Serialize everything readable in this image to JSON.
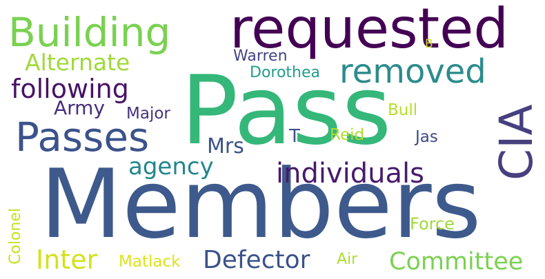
{
  "word_cloud": {
    "words": [
      {
        "text": "Pass",
        "color": "#35b779"
      },
      {
        "text": "Members",
        "color": "#3e5a8c"
      },
      {
        "text": "requested",
        "color": "#440154"
      },
      {
        "text": "Building",
        "color": "#7ad151"
      },
      {
        "text": "Passes",
        "color": "#3b528b"
      },
      {
        "text": "CIA",
        "color": "#46407f"
      },
      {
        "text": "removed",
        "color": "#2c8b8c"
      },
      {
        "text": "following",
        "color": "#471365"
      },
      {
        "text": "Alternate",
        "color": "#a0da39"
      },
      {
        "text": "individuals",
        "color": "#481a6c"
      },
      {
        "text": "agency",
        "color": "#23868d"
      },
      {
        "text": "Defector",
        "color": "#3b528b"
      },
      {
        "text": "Committee",
        "color": "#7ad151"
      },
      {
        "text": "Inter",
        "color": "#d2e21b"
      },
      {
        "text": "Army",
        "color": "#472d7b"
      },
      {
        "text": "Mrs",
        "color": "#3b528b"
      },
      {
        "text": "Warren",
        "color": "#414487"
      },
      {
        "text": "Dorothea",
        "color": "#1f9e89"
      },
      {
        "text": "Major",
        "color": "#46327e"
      },
      {
        "text": "Bull",
        "color": "#b5de2b"
      },
      {
        "text": "Reid",
        "color": "#addc30"
      },
      {
        "text": "Jas",
        "color": "#3e4a89"
      },
      {
        "text": "T",
        "color": "#3b528b"
      },
      {
        "text": "B",
        "color": "#c8e020"
      },
      {
        "text": "Force",
        "color": "#a0da39"
      },
      {
        "text": "Colonel",
        "color": "#c8e020"
      },
      {
        "text": "Matlack",
        "color": "#dde318"
      },
      {
        "text": "Air",
        "color": "#addc30"
      }
    ]
  }
}
